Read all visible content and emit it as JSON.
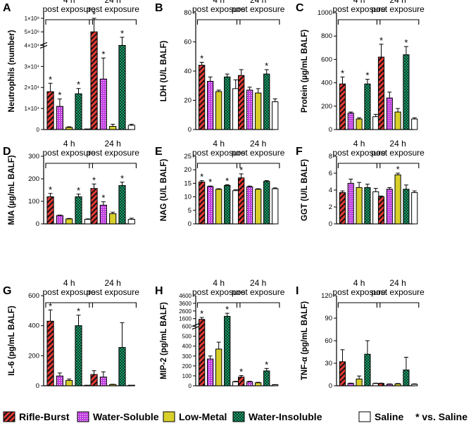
{
  "colors": {
    "rifle": "#e53935",
    "water_soluble": "#c040e0",
    "low_metal": "#d8cf2a",
    "water_insoluble": "#1c9e6a",
    "saline": "#ffffff",
    "stroke": "#000000"
  },
  "legend": {
    "items": [
      {
        "label": "Rifle-Burst",
        "key": "rifle"
      },
      {
        "label": "Water-Soluble",
        "key": "water_soluble"
      },
      {
        "label": "Low-Metal",
        "key": "low_metal"
      },
      {
        "label": "Water-Insoluble",
        "key": "water_insoluble"
      },
      {
        "label": "Saline",
        "key": "saline"
      }
    ],
    "note": "* vs. Saline"
  },
  "chart_data": [
    {
      "type": "bar",
      "panel": "A",
      "ylabel": "Neutrophils (number)",
      "ylim": [
        0,
        50000
      ],
      "yticks": [
        "0",
        "1×10⁴",
        "2×10⁴",
        "3×10⁴",
        "4×10⁴",
        "5×10⁶",
        "1×10⁸"
      ],
      "broken_axis": true,
      "groups": [
        {
          "label": "4 h post exposure",
          "values": [
            18000,
            11000,
            1000,
            17000,
            100
          ],
          "errors": [
            4000,
            3500,
            300,
            2500,
            50
          ],
          "sig": [
            true,
            true,
            false,
            true,
            false
          ]
        },
        {
          "label": "24 h post exposure",
          "values": [
            45000,
            24000,
            1500,
            40000,
            2000
          ],
          "errors": [
            5000,
            10000,
            1000,
            3000,
            500
          ],
          "sig": [
            true,
            true,
            false,
            true,
            false
          ]
        }
      ]
    },
    {
      "type": "bar",
      "panel": "B",
      "ylabel": "LDH (U/L BALF)",
      "ylim": [
        0,
        80
      ],
      "yticks": [
        "0",
        "20",
        "40",
        "60",
        "80"
      ],
      "groups": [
        {
          "label": "4 h post exposure",
          "values": [
            44,
            33,
            26,
            36,
            28
          ],
          "errors": [
            2,
            3,
            1,
            2,
            6
          ],
          "sig": [
            true,
            false,
            false,
            false,
            false
          ]
        },
        {
          "label": "24 h post exposure",
          "values": [
            37,
            27,
            25,
            38,
            19
          ],
          "errors": [
            4,
            2,
            3,
            3,
            2
          ],
          "sig": [
            false,
            false,
            false,
            true,
            false
          ]
        }
      ]
    },
    {
      "type": "bar",
      "panel": "C",
      "ylabel": "Protein (µg/mL BALF)",
      "ylim": [
        0,
        1000
      ],
      "yticks": [
        "0",
        "200",
        "400",
        "600",
        "800",
        "1000"
      ],
      "groups": [
        {
          "label": "4 h post exposure",
          "values": [
            390,
            140,
            90,
            390,
            110
          ],
          "errors": [
            60,
            10,
            10,
            40,
            20
          ],
          "sig": [
            true,
            false,
            false,
            true,
            false
          ]
        },
        {
          "label": "24 h post exposure",
          "values": [
            620,
            270,
            150,
            640,
            90
          ],
          "errors": [
            110,
            50,
            30,
            70,
            10
          ],
          "sig": [
            true,
            false,
            false,
            true,
            false
          ]
        }
      ]
    },
    {
      "type": "bar",
      "panel": "D",
      "ylabel": "MIA (µg/mL BALF)",
      "ylim": [
        0,
        300
      ],
      "yticks": [
        "0",
        "100",
        "200",
        "300"
      ],
      "groups": [
        {
          "label": "4 h post exposure",
          "values": [
            120,
            37,
            22,
            120,
            20
          ],
          "errors": [
            15,
            2,
            2,
            12,
            2
          ],
          "sig": [
            true,
            false,
            false,
            true,
            false
          ]
        },
        {
          "label": "24 h post exposure",
          "values": [
            157,
            83,
            45,
            170,
            20
          ],
          "errors": [
            20,
            15,
            7,
            15,
            5
          ],
          "sig": [
            true,
            true,
            false,
            true,
            false
          ]
        }
      ]
    },
    {
      "type": "bar",
      "panel": "E",
      "ylabel": "NAG (U/L BALF)",
      "ylim": [
        0,
        25
      ],
      "yticks": [
        "0",
        "5",
        "10",
        "15",
        "20",
        "25"
      ],
      "groups": [
        {
          "label": "4 h post exposure",
          "values": [
            15.5,
            13.8,
            12.8,
            14.2,
            12.3
          ],
          "errors": [
            0.5,
            0.2,
            0.2,
            0.3,
            0.3
          ],
          "sig": [
            true,
            true,
            false,
            true,
            false
          ]
        },
        {
          "label": "24 h post exposure",
          "values": [
            17,
            13.7,
            12.8,
            15.7,
            13
          ],
          "errors": [
            1.5,
            0.3,
            0.2,
            0.3,
            0.3
          ],
          "sig": [
            true,
            false,
            false,
            false,
            false
          ]
        }
      ]
    },
    {
      "type": "bar",
      "panel": "F",
      "ylabel": "GGT (U/L BALF)",
      "ylim": [
        0,
        8
      ],
      "yticks": [
        "0",
        "2",
        "4",
        "6",
        "8"
      ],
      "groups": [
        {
          "label": "4 h post exposure",
          "values": [
            3.7,
            4.8,
            4.3,
            4.3,
            3.8
          ],
          "errors": [
            0.2,
            0.5,
            0.6,
            0.4,
            0.4
          ],
          "sig": [
            false,
            false,
            false,
            false,
            false
          ]
        },
        {
          "label": "24 h post exposure",
          "values": [
            3.2,
            4.1,
            5.8,
            4.1,
            3.7
          ],
          "errors": [
            0.1,
            0.2,
            0.2,
            0.5,
            0.2
          ],
          "sig": [
            false,
            false,
            true,
            false,
            false
          ]
        }
      ]
    },
    {
      "type": "bar",
      "panel": "G",
      "ylabel": "IL-6 (pg/mL BALF)",
      "ylim": [
        0,
        600
      ],
      "yticks": [
        "0",
        "200",
        "400",
        "600"
      ],
      "groups": [
        {
          "label": "4 h post exposure",
          "values": [
            430,
            65,
            35,
            400,
            0
          ],
          "errors": [
            75,
            20,
            10,
            70,
            0
          ],
          "sig": [
            true,
            false,
            false,
            true,
            false
          ]
        },
        {
          "label": "24 h post exposure",
          "values": [
            75,
            58,
            8,
            255,
            0
          ],
          "errors": [
            25,
            35,
            2,
            165,
            0
          ],
          "sig": [
            false,
            false,
            false,
            false,
            false
          ]
        }
      ]
    },
    {
      "type": "bar",
      "panel": "H",
      "ylabel": "MIP-2 (pg/mL BALF)",
      "ylim": [
        0,
        4600
      ],
      "yticks": [
        "0",
        "100",
        "200",
        "300",
        "400",
        "500",
        "600",
        "1600",
        "2600",
        "3600",
        "4600"
      ],
      "broken_axis": true,
      "groups": [
        {
          "label": "4 h post exposure",
          "values": [
            1500,
            270,
            370,
            1900,
            40
          ],
          "errors": [
            250,
            30,
            70,
            400,
            5
          ],
          "sig": [
            true,
            false,
            false,
            true,
            false
          ]
        },
        {
          "label": "24 h post exposure",
          "values": [
            88,
            40,
            30,
            150,
            10
          ],
          "errors": [
            15,
            5,
            5,
            25,
            2
          ],
          "sig": [
            true,
            false,
            false,
            true,
            false
          ]
        }
      ]
    },
    {
      "type": "bar",
      "panel": "I",
      "ylabel": "TNF-α (pg/mL BALF)",
      "ylim": [
        0,
        120
      ],
      "yticks": [
        "0",
        "30",
        "60",
        "90",
        "120"
      ],
      "groups": [
        {
          "label": "4 h post exposure",
          "values": [
            32,
            3,
            9,
            42,
            3
          ],
          "errors": [
            16,
            0.5,
            4,
            18,
            0.5
          ],
          "sig": [
            false,
            false,
            false,
            false,
            false
          ]
        },
        {
          "label": "24 h post exposure",
          "values": [
            3,
            2,
            2.5,
            21,
            2
          ],
          "errors": [
            0.5,
            0.5,
            0.5,
            17,
            0.5
          ],
          "sig": [
            false,
            false,
            false,
            false,
            false
          ]
        }
      ]
    }
  ]
}
